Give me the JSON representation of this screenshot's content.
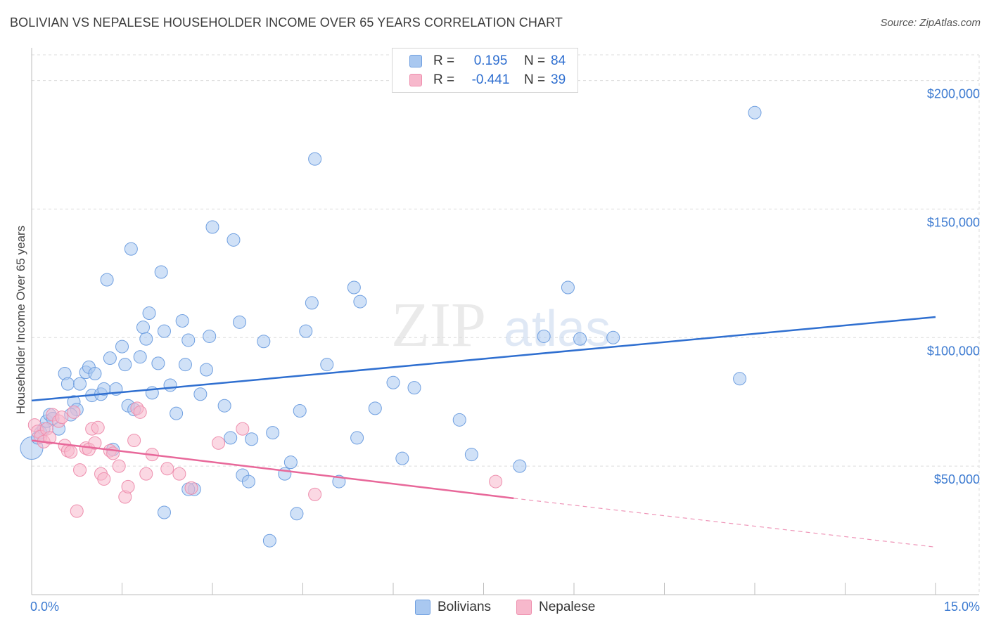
{
  "title": "BOLIVIAN VS NEPALESE HOUSEHOLDER INCOME OVER 65 YEARS CORRELATION CHART",
  "source": "Source: ZipAtlas.com",
  "watermark": {
    "part1": "ZIP",
    "part2": "atlas"
  },
  "legend": {
    "rows": [
      {
        "r_label": "R =",
        "r_value": "0.195",
        "n_label": "N =",
        "n_value": "84",
        "color": "#a9c8f0",
        "border": "#6f9fe0"
      },
      {
        "r_label": "R =",
        "r_value": "-0.441",
        "n_label": "N =",
        "n_value": "39",
        "color": "#f7b8cc",
        "border": "#ee8fae"
      }
    ]
  },
  "bottom_legend": [
    {
      "label": "Bolivians",
      "color": "#a9c8f0",
      "border": "#6f9fe0"
    },
    {
      "label": "Nepalese",
      "color": "#f7b8cc",
      "border": "#ee8fae"
    }
  ],
  "chart_data": {
    "type": "scatter",
    "title": "BOLIVIAN VS NEPALESE HOUSEHOLDER INCOME OVER 65 YEARS CORRELATION CHART",
    "xlabel": "",
    "ylabel": "Householder Income Over 65 years",
    "xlim": [
      0,
      15
    ],
    "ylim": [
      0,
      210000
    ],
    "x_tick_labels": [
      "0.0%",
      "15.0%"
    ],
    "y_ticks": [
      50000,
      100000,
      150000,
      200000
    ],
    "y_tick_labels": [
      "$50,000",
      "$100,000",
      "$150,000",
      "$200,000"
    ],
    "series": [
      {
        "name": "Bolivians",
        "color": "#a9c8f0",
        "edge": "#6f9fe0",
        "line_color": "#2f6fd0",
        "trend": {
          "x0": 0,
          "y0": 75500,
          "x1": 15,
          "y1": 108000
        },
        "points": [
          [
            0.0,
            57000
          ],
          [
            0.1,
            61000
          ],
          [
            0.15,
            63000
          ],
          [
            0.2,
            64500
          ],
          [
            0.25,
            67500
          ],
          [
            0.3,
            70000
          ],
          [
            0.35,
            68500
          ],
          [
            0.45,
            64500
          ],
          [
            0.55,
            86000
          ],
          [
            0.6,
            82000
          ],
          [
            0.7,
            75000
          ],
          [
            0.75,
            72000
          ],
          [
            0.8,
            82000
          ],
          [
            0.9,
            86500
          ],
          [
            0.95,
            88500
          ],
          [
            1.0,
            77500
          ],
          [
            1.05,
            86000
          ],
          [
            1.15,
            78000
          ],
          [
            1.2,
            80000
          ],
          [
            1.25,
            122500
          ],
          [
            1.3,
            92000
          ],
          [
            1.4,
            80000
          ],
          [
            1.5,
            96500
          ],
          [
            1.55,
            89500
          ],
          [
            1.6,
            73500
          ],
          [
            1.65,
            134500
          ],
          [
            1.7,
            72000
          ],
          [
            1.8,
            92500
          ],
          [
            1.85,
            104000
          ],
          [
            1.9,
            99500
          ],
          [
            1.95,
            109500
          ],
          [
            2.0,
            78500
          ],
          [
            2.1,
            90000
          ],
          [
            2.15,
            125500
          ],
          [
            2.2,
            102500
          ],
          [
            2.3,
            81500
          ],
          [
            2.4,
            70500
          ],
          [
            2.5,
            106500
          ],
          [
            2.55,
            89500
          ],
          [
            2.6,
            99000
          ],
          [
            2.7,
            41000
          ],
          [
            2.8,
            78000
          ],
          [
            2.9,
            87500
          ],
          [
            2.95,
            100500
          ],
          [
            3.0,
            143000
          ],
          [
            3.2,
            73500
          ],
          [
            3.3,
            61000
          ],
          [
            3.35,
            138000
          ],
          [
            3.45,
            106000
          ],
          [
            3.5,
            46500
          ],
          [
            3.6,
            44000
          ],
          [
            3.65,
            60500
          ],
          [
            3.85,
            98500
          ],
          [
            3.95,
            21000
          ],
          [
            4.0,
            63000
          ],
          [
            4.2,
            47000
          ],
          [
            4.3,
            51500
          ],
          [
            4.4,
            31500
          ],
          [
            4.45,
            71500
          ],
          [
            4.55,
            102500
          ],
          [
            4.65,
            113500
          ],
          [
            4.7,
            169500
          ],
          [
            4.9,
            89500
          ],
          [
            5.1,
            44000
          ],
          [
            5.35,
            119500
          ],
          [
            5.4,
            61000
          ],
          [
            5.45,
            114000
          ],
          [
            5.7,
            72500
          ],
          [
            6.0,
            82500
          ],
          [
            6.15,
            53000
          ],
          [
            6.35,
            80500
          ],
          [
            7.1,
            68000
          ],
          [
            7.3,
            54500
          ],
          [
            8.1,
            50000
          ],
          [
            8.5,
            100500
          ],
          [
            8.9,
            119500
          ],
          [
            9.1,
            99500
          ],
          [
            9.65,
            100000
          ],
          [
            11.75,
            84000
          ],
          [
            12.0,
            187500
          ],
          [
            2.2,
            32000
          ],
          [
            2.6,
            41000
          ],
          [
            1.35,
            56500
          ],
          [
            0.65,
            70000
          ]
        ]
      },
      {
        "name": "Nepalese",
        "color": "#f7b8cc",
        "edge": "#ee8fae",
        "line_color": "#e8689a",
        "trend": {
          "x0": 0,
          "y0": 60000,
          "x1": 8.0,
          "y1": 37500
        },
        "trend_dashed": {
          "x0": 8.0,
          "y0": 37500,
          "x1": 15,
          "y1": 18500
        },
        "points": [
          [
            0.05,
            66000
          ],
          [
            0.1,
            63500
          ],
          [
            0.15,
            61500
          ],
          [
            0.2,
            59500
          ],
          [
            0.25,
            64500
          ],
          [
            0.3,
            61000
          ],
          [
            0.35,
            70000
          ],
          [
            0.45,
            67500
          ],
          [
            0.5,
            69000
          ],
          [
            0.55,
            58000
          ],
          [
            0.6,
            56000
          ],
          [
            0.65,
            55500
          ],
          [
            0.7,
            71000
          ],
          [
            0.75,
            32500
          ],
          [
            0.8,
            48500
          ],
          [
            0.9,
            57000
          ],
          [
            0.95,
            56500
          ],
          [
            1.0,
            64500
          ],
          [
            1.05,
            59000
          ],
          [
            1.1,
            65000
          ],
          [
            1.15,
            47000
          ],
          [
            1.2,
            45000
          ],
          [
            1.3,
            56000
          ],
          [
            1.35,
            55000
          ],
          [
            1.45,
            50000
          ],
          [
            1.55,
            38000
          ],
          [
            1.6,
            42000
          ],
          [
            1.7,
            60000
          ],
          [
            1.75,
            72500
          ],
          [
            1.9,
            47000
          ],
          [
            2.0,
            54500
          ],
          [
            2.25,
            49000
          ],
          [
            2.45,
            47000
          ],
          [
            2.65,
            41500
          ],
          [
            3.1,
            59000
          ],
          [
            3.5,
            64500
          ],
          [
            4.7,
            39000
          ],
          [
            7.7,
            44000
          ],
          [
            1.8,
            71000
          ]
        ]
      }
    ]
  }
}
